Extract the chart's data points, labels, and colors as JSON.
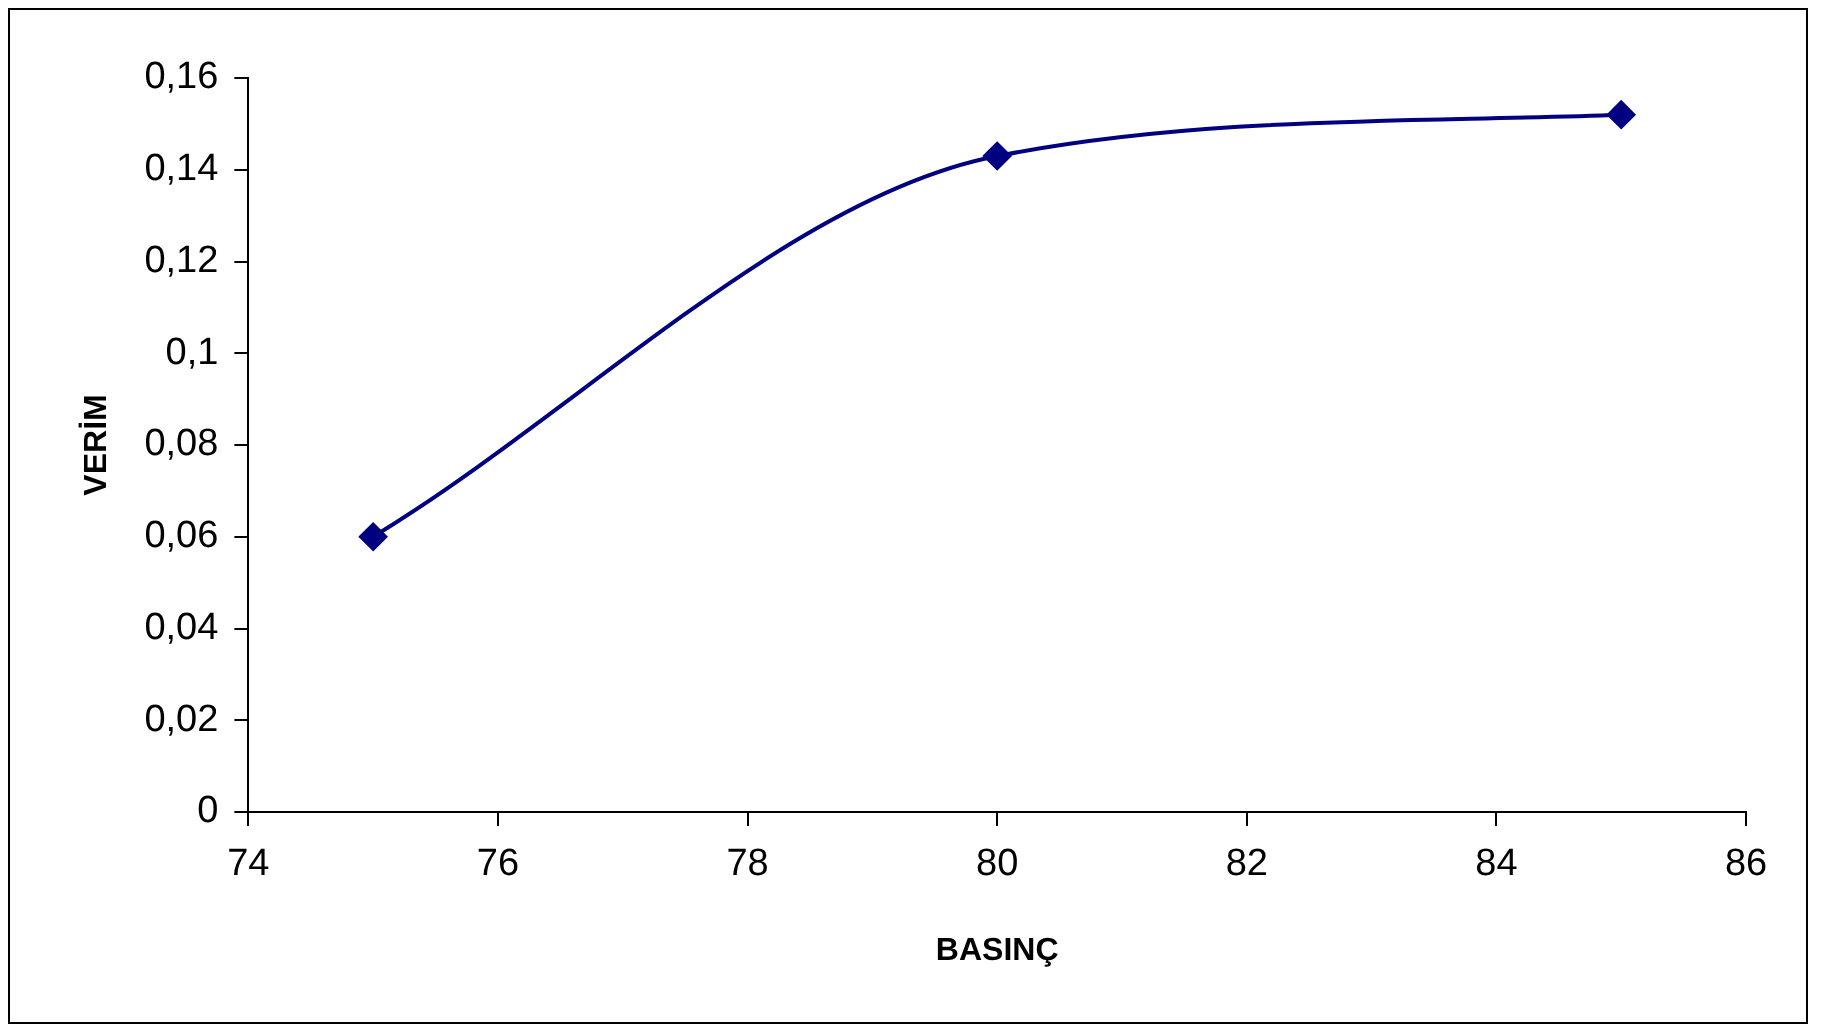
{
  "chart_data": {
    "type": "line",
    "xlabel": "BASINÇ",
    "ylabel": "VERİM",
    "x": [
      75,
      80,
      85
    ],
    "series": [
      {
        "color": "#000080",
        "values": [
          0.06,
          0.143,
          0.152
        ]
      }
    ],
    "xlim": [
      74,
      86
    ],
    "xticks": [
      74,
      76,
      78,
      80,
      82,
      84,
      86
    ],
    "ylim": [
      0,
      0.16
    ],
    "yticks": [
      0,
      {
        "value": 0.02,
        "label": "0,02"
      },
      {
        "value": 0.04,
        "label": "0,04"
      },
      {
        "value": 0.06,
        "label": "0,06"
      },
      {
        "value": 0.08,
        "label": "0,08"
      },
      {
        "value": 0.1,
        "label": "0,1"
      },
      {
        "value": 0.12,
        "label": "0,12"
      },
      {
        "value": 0.14,
        "label": "0,14"
      },
      {
        "value": 0.16,
        "label": "0,16"
      }
    ],
    "grid": false,
    "legend": false,
    "marker": "diamond",
    "line_style": "solid"
  }
}
